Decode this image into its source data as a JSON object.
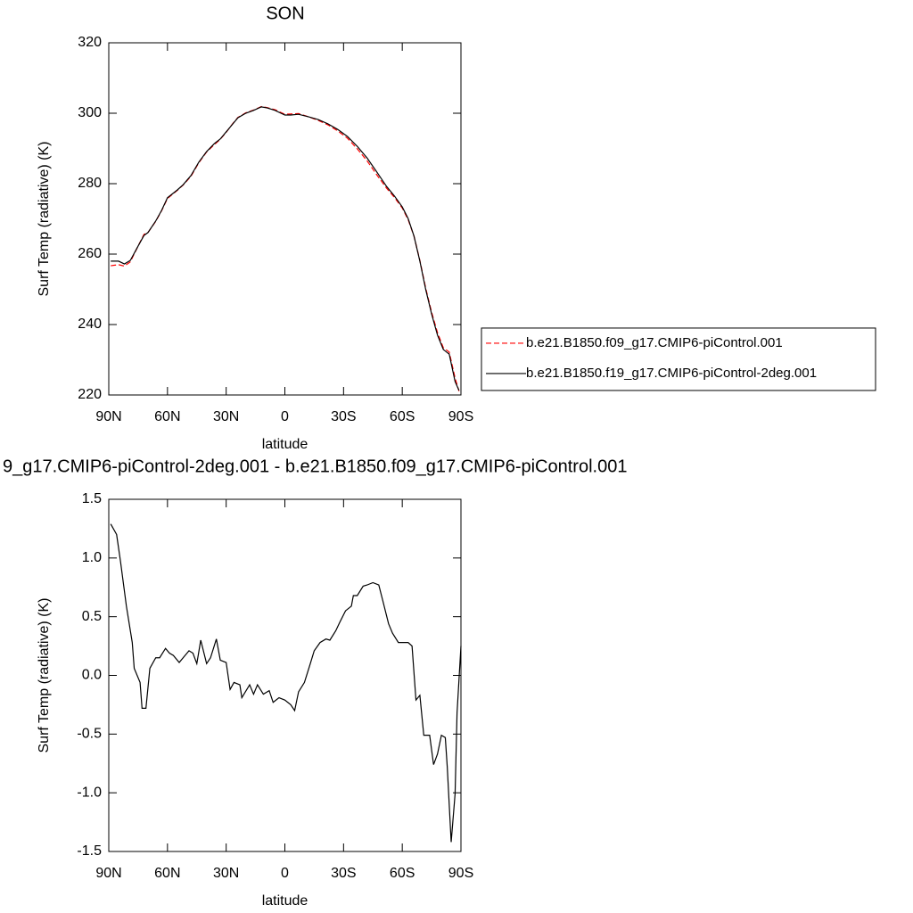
{
  "chart_data": [
    {
      "type": "line",
      "title": "SON",
      "x_label": "latitude",
      "y_label": "Surf Temp (radiative) (K)",
      "x": [
        89,
        85,
        82,
        79,
        75,
        72,
        70,
        66,
        63,
        60,
        55,
        52,
        48,
        44,
        40,
        36,
        33,
        30,
        27,
        24,
        20,
        16,
        12,
        9,
        5,
        2,
        0,
        -3,
        -7,
        -12,
        -17,
        -22,
        -27,
        -32,
        -37,
        -42,
        -47,
        -52,
        -56,
        -60,
        -63,
        -66,
        -69,
        -72,
        -75,
        -78,
        -81,
        -84,
        -87,
        -89
      ],
      "series": [
        {
          "name": "b.e21.B1850.f09_g17.CMIP6-piControl.001",
          "color": "#ff0000",
          "line_style": "dashed",
          "values": [
            256.7,
            257,
            256.6,
            257.8,
            262.3,
            265.6,
            266.1,
            269.3,
            272.3,
            275.8,
            278.1,
            279.6,
            282.1,
            285.9,
            289.0,
            291.1,
            292.6,
            294.6,
            296.8,
            298.8,
            300.1,
            300.9,
            301.9,
            301.6,
            301,
            300.2,
            299.7,
            299.8,
            299.9,
            299,
            298,
            296.7,
            295,
            292.9,
            289.9,
            286.5,
            282.5,
            278.7,
            276.1,
            273.1,
            269.8,
            265.1,
            258.2,
            250.3,
            243.5,
            237.7,
            233.4,
            232.2,
            224.8,
            221.1
          ]
        },
        {
          "name": "b.e21.B1850.f19_g17.CMIP6-piControl-2deg.001",
          "color": "#000000",
          "line_style": "solid",
          "values": [
            258.0,
            258,
            257.2,
            258.2,
            262.3,
            265.3,
            266.1,
            269.4,
            272.4,
            276,
            278.2,
            279.7,
            282.3,
            286.1,
            289.1,
            291.4,
            292.7,
            294.7,
            296.7,
            298.7,
            300,
            300.8,
            301.8,
            301.5,
            300.8,
            300,
            299.5,
            299.5,
            299.7,
            299,
            298.2,
            297,
            295.4,
            293.4,
            290.6,
            287.3,
            283.3,
            279.2,
            276.5,
            273.4,
            270.1,
            265.1,
            258,
            249.9,
            243,
            237,
            232.9,
            231.6,
            223.8,
            221.3
          ]
        }
      ],
      "xlim": [
        90,
        -90
      ],
      "xticks": [
        {
          "value": 90,
          "label": "90N"
        },
        {
          "value": 60,
          "label": "60N"
        },
        {
          "value": 30,
          "label": "30N"
        },
        0,
        {
          "value": -30,
          "label": "30S"
        },
        {
          "value": -60,
          "label": "60S"
        },
        {
          "value": -90,
          "label": "90S"
        }
      ],
      "ylim": [
        220,
        320
      ],
      "yticks": [
        220,
        240,
        260,
        280,
        300,
        320
      ],
      "legend": "right"
    },
    {
      "type": "line",
      "title": "9_g17.CMIP6-piControl-2deg.001 - b.e21.B1850.f09_g17.CMIP6-piControl.001",
      "x_label": "latitude",
      "y_label": "Surf Temp (radiative) (K)",
      "x": [
        89,
        86,
        84,
        81,
        78,
        77,
        74,
        73,
        71,
        69,
        66,
        64,
        61,
        59,
        57,
        54,
        52,
        49,
        47,
        45,
        43,
        40,
        38,
        35,
        33,
        30,
        28,
        26,
        23,
        22,
        18,
        16,
        14,
        11,
        8,
        6,
        3,
        0,
        -3,
        -5,
        -7,
        -10,
        -13,
        -15,
        -18,
        -21,
        -23,
        -26,
        -28,
        -31,
        -34,
        -35,
        -37,
        -40,
        -42,
        -45,
        -48,
        -50,
        -53,
        -55,
        -58,
        -60,
        -63,
        -65,
        -67,
        -69,
        -71,
        -74,
        -76,
        -78,
        -80,
        -82,
        -83,
        -85,
        -87,
        -88,
        -90
      ],
      "values": [
        1.29,
        1.2,
        0.97,
        0.59,
        0.28,
        0.06,
        -0.06,
        -0.28,
        -0.28,
        0.06,
        0.15,
        0.15,
        0.23,
        0.19,
        0.17,
        0.11,
        0.15,
        0.21,
        0.19,
        0.1,
        0.3,
        0.1,
        0.15,
        0.31,
        0.13,
        0.11,
        -0.12,
        -0.06,
        -0.08,
        -0.19,
        -0.08,
        -0.16,
        -0.08,
        -0.16,
        -0.13,
        -0.23,
        -0.19,
        -0.21,
        -0.25,
        -0.3,
        -0.14,
        -0.06,
        0.1,
        0.21,
        0.28,
        0.31,
        0.3,
        0.38,
        0.45,
        0.55,
        0.59,
        0.68,
        0.68,
        0.76,
        0.77,
        0.79,
        0.77,
        0.64,
        0.44,
        0.36,
        0.28,
        0.28,
        0.28,
        0.25,
        -0.21,
        -0.17,
        -0.51,
        -0.51,
        -0.76,
        -0.67,
        -0.51,
        -0.53,
        -0.78,
        -1.42,
        -1.01,
        -0.32,
        0.25
      ],
      "color": "#000000",
      "xlim": [
        90,
        -90
      ],
      "xticks": [
        {
          "value": 90,
          "label": "90N"
        },
        {
          "value": 60,
          "label": "60N"
        },
        {
          "value": 30,
          "label": "30N"
        },
        0,
        {
          "value": -30,
          "label": "30S"
        },
        {
          "value": -60,
          "label": "60S"
        },
        {
          "value": -90,
          "label": "90S"
        }
      ],
      "ylim": [
        -1.5,
        1.5
      ],
      "yticks": [
        -1.5,
        {
          "value": -1.0,
          "label": "-1.0"
        },
        -0.5,
        {
          "value": 0.0,
          "label": "0.0"
        },
        0.5,
        {
          "value": 1.0,
          "label": "1.0"
        },
        1.5
      ]
    }
  ]
}
